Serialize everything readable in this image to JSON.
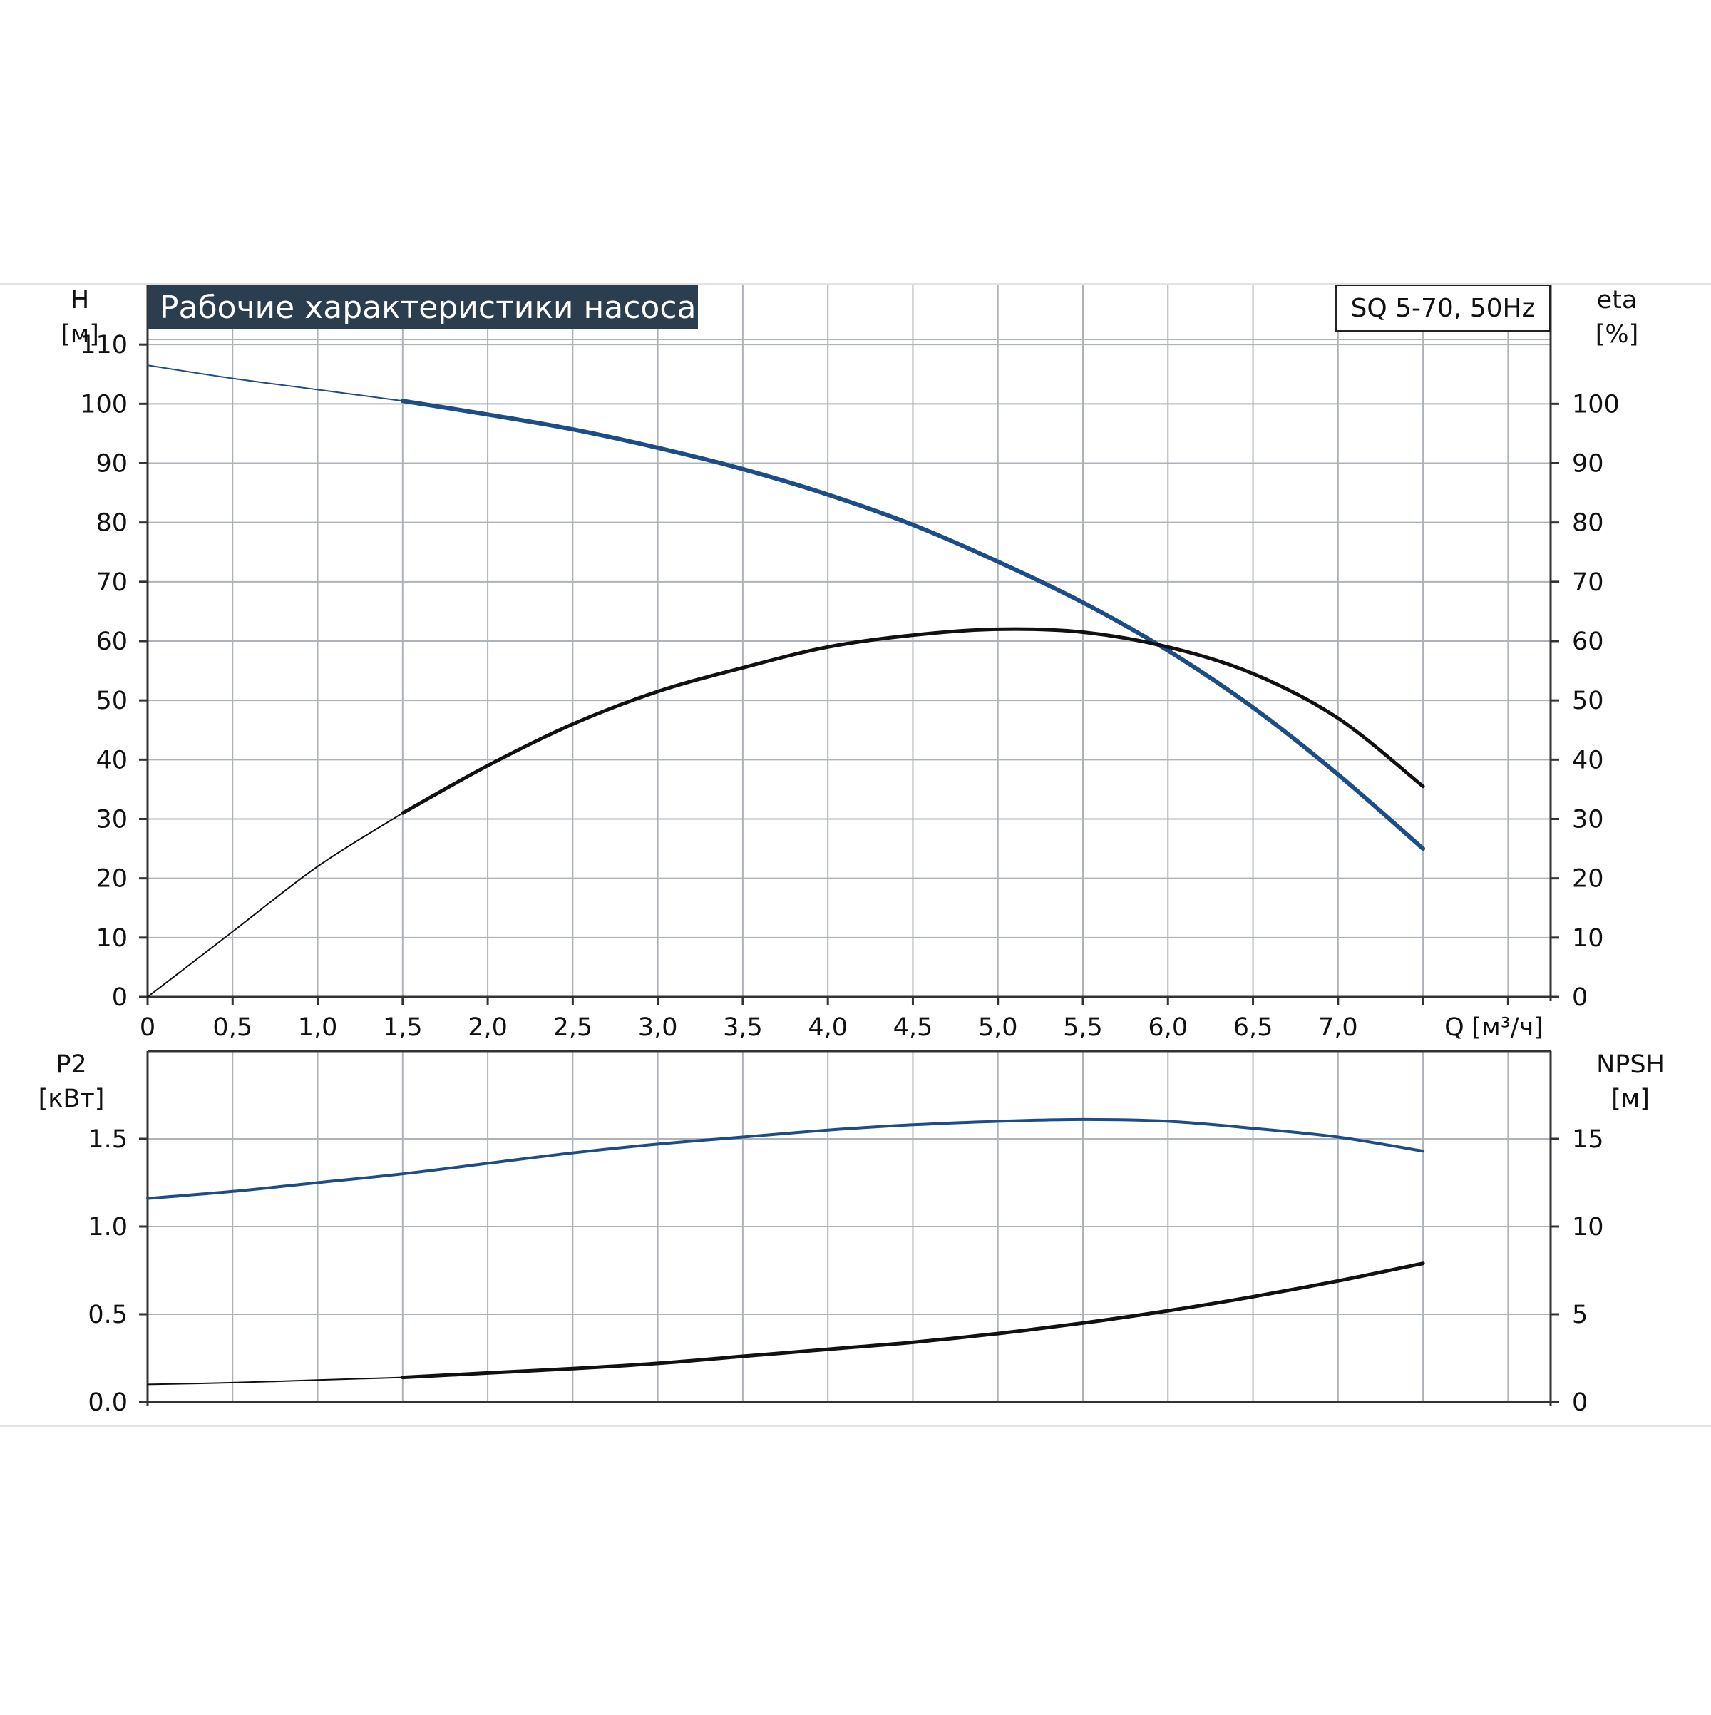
{
  "colors": {
    "grid": "#aeb3b9",
    "frame": "#333333",
    "blue": "#1d4d86",
    "black": "#111111",
    "title_bg": "#2b3e50",
    "title_text": "#ffffff",
    "band": "#e9eaec"
  },
  "title": "Рабочие характеристики насоса",
  "model": "SQ 5-70, 50Hz",
  "chart_data": [
    {
      "type": "line",
      "panel": "performance",
      "x_label": "Q [м³/ч]",
      "x_ticks": [
        "0",
        "0,5",
        "1,0",
        "1,5",
        "2,0",
        "2,5",
        "3,0",
        "3,5",
        "4,0",
        "4,5",
        "5,0",
        "5,5",
        "6,0",
        "6,5",
        "7,0"
      ],
      "xlim": [
        0,
        8.25
      ],
      "left_axis": {
        "label": "H",
        "unit": "[м]",
        "ticks": [
          0,
          10,
          20,
          30,
          40,
          50,
          60,
          70,
          80,
          90,
          100,
          110
        ],
        "lim": [
          0,
          120
        ]
      },
      "right_axis": {
        "label": "eta",
        "unit": "[%]",
        "ticks": [
          0,
          10,
          20,
          30,
          40,
          50,
          60,
          70,
          80,
          90,
          100
        ],
        "lim": [
          0,
          120
        ]
      },
      "grid": true,
      "series": [
        {
          "color": "blue",
          "axis": "left",
          "thin_until": 1.5,
          "x": [
            0,
            0.5,
            1.0,
            1.5,
            2.0,
            2.5,
            3.0,
            3.5,
            4.0,
            4.5,
            5.0,
            5.5,
            6.0,
            6.5,
            7.0,
            7.5
          ],
          "y": [
            106.5,
            104.3,
            102.4,
            100.5,
            98.2,
            95.7,
            92.6,
            89.0,
            84.7,
            79.6,
            73.4,
            66.5,
            58.4,
            48.8,
            37.5,
            25
          ]
        },
        {
          "color": "black",
          "axis": "right",
          "thin_until": 1.5,
          "x": [
            0,
            0.5,
            1.0,
            1.5,
            2.0,
            2.5,
            3.0,
            3.5,
            4.0,
            4.5,
            5.0,
            5.5,
            6.0,
            6.5,
            7.0,
            7.5
          ],
          "y": [
            0,
            11,
            22,
            31,
            39,
            46,
            51.5,
            55.5,
            59,
            61,
            62,
            61.5,
            59,
            54.5,
            47,
            35.5
          ]
        }
      ]
    },
    {
      "type": "line",
      "panel": "power-npsh",
      "xlim": [
        0,
        8.25
      ],
      "left_axis": {
        "label": "P2",
        "unit": "[кВт]",
        "ticks": [
          "0.0",
          "0.5",
          "1.0",
          "1.5"
        ],
        "lim": [
          0,
          2.0
        ]
      },
      "right_axis": {
        "label": "NPSH",
        "unit": "[м]",
        "ticks": [
          "0",
          "5",
          "10",
          "15"
        ],
        "lim": [
          0,
          20
        ]
      },
      "grid": true,
      "series": [
        {
          "color": "blue",
          "axis": "left",
          "thin_until": 0,
          "x": [
            0,
            0.5,
            1.0,
            1.5,
            2.0,
            2.5,
            3.0,
            3.5,
            4.0,
            4.5,
            5.0,
            5.5,
            6.0,
            6.5,
            7.0,
            7.5
          ],
          "y": [
            1.16,
            1.2,
            1.25,
            1.3,
            1.36,
            1.42,
            1.47,
            1.51,
            1.55,
            1.58,
            1.6,
            1.61,
            1.6,
            1.56,
            1.51,
            1.43
          ]
        },
        {
          "color": "black",
          "axis": "right",
          "thin_until": 1.5,
          "x": [
            0,
            0.5,
            1.0,
            1.5,
            2.0,
            2.5,
            3.0,
            3.5,
            4.0,
            4.5,
            5.0,
            5.5,
            6.0,
            6.5,
            7.0,
            7.5
          ],
          "y": [
            1.0,
            1.1,
            1.25,
            1.4,
            1.65,
            1.9,
            2.2,
            2.6,
            3.0,
            3.4,
            3.9,
            4.5,
            5.2,
            6.0,
            6.9,
            7.9
          ]
        }
      ]
    }
  ]
}
